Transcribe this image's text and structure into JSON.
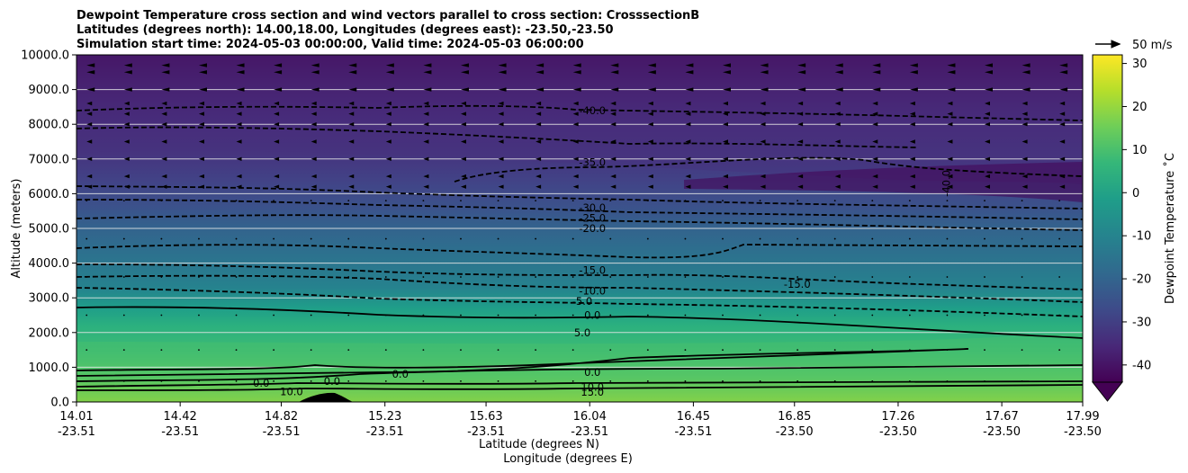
{
  "chart_data": {
    "type": "contour",
    "title_lines": [
      "Dewpoint Temperature cross section and wind vectors parallel to cross section: CrosssectionB",
      "Latitudes (degrees north): 14.00,18.00, Longitudes (degrees east): -23.50,-23.50",
      "Simulation start time: 2024-05-03 00:00:00, Valid time: 2024-05-03 06:00:00"
    ],
    "ylabel": "Altitude (meters)",
    "xlabel_lat": "Latitude (degrees N)",
    "xlabel_lon": "Longitude (degrees E)",
    "ylim": [
      0,
      10000
    ],
    "y_ticks": [
      "0.0",
      "1000.0",
      "2000.0",
      "3000.0",
      "4000.0",
      "5000.0",
      "6000.0",
      "7000.0",
      "8000.0",
      "9000.0",
      "10000.0"
    ],
    "x_ticks": [
      {
        "lat": "14.01",
        "lon": "-23.51"
      },
      {
        "lat": "14.42",
        "lon": "-23.51"
      },
      {
        "lat": "14.82",
        "lon": "-23.51"
      },
      {
        "lat": "15.23",
        "lon": "-23.51"
      },
      {
        "lat": "15.63",
        "lon": "-23.51"
      },
      {
        "lat": "16.04",
        "lon": "-23.51"
      },
      {
        "lat": "16.45",
        "lon": "-23.51"
      },
      {
        "lat": "16.85",
        "lon": "-23.50"
      },
      {
        "lat": "17.26",
        "lon": "-23.50"
      },
      {
        "lat": "17.67",
        "lon": "-23.50"
      },
      {
        "lat": "17.99",
        "lon": "-23.50"
      }
    ],
    "colorbar": {
      "label": "Dewpoint Temperature ˚C",
      "ticks": [
        "-40",
        "-30",
        "-20",
        "-10",
        "0",
        "10",
        "20",
        "30"
      ],
      "range": [
        -44,
        32
      ],
      "extend": "min",
      "colormap": "viridis"
    },
    "quiver_key": "50 m/s",
    "contour_labels": [
      {
        "text": "-40.0",
        "lat": 16.04,
        "alt": 8400
      },
      {
        "text": "-35.0",
        "lat": 16.04,
        "alt": 6900
      },
      {
        "text": "-30.0",
        "lat": 16.04,
        "alt": 5600
      },
      {
        "text": "-25.0",
        "lat": 16.04,
        "alt": 5300
      },
      {
        "text": "-20.0",
        "lat": 16.04,
        "alt": 5000
      },
      {
        "text": "-15.0",
        "lat": 16.04,
        "alt": 3800
      },
      {
        "text": "-10.0",
        "lat": 16.04,
        "alt": 3200
      },
      {
        "text": "-5.0",
        "lat": 16.0,
        "alt": 2900
      },
      {
        "text": "0.0",
        "lat": 16.04,
        "alt": 2500
      },
      {
        "text": "5.0",
        "lat": 16.0,
        "alt": 2000
      },
      {
        "text": "0.0",
        "lat": 16.04,
        "alt": 850
      },
      {
        "text": "10.0",
        "lat": 16.04,
        "alt": 430
      },
      {
        "text": "15.0",
        "lat": 16.04,
        "alt": 280
      },
      {
        "text": "-15.0",
        "lat": 16.85,
        "alt": 3400
      },
      {
        "text": "-40.0",
        "lat": 17.44,
        "alt": 6300
      },
      {
        "text": "0.0",
        "lat": 15.28,
        "alt": 800
      },
      {
        "text": "0.0",
        "lat": 15.01,
        "alt": 600
      },
      {
        "text": "0.0",
        "lat": 14.73,
        "alt": 550
      },
      {
        "text": "10.0",
        "lat": 14.85,
        "alt": 300
      }
    ]
  }
}
